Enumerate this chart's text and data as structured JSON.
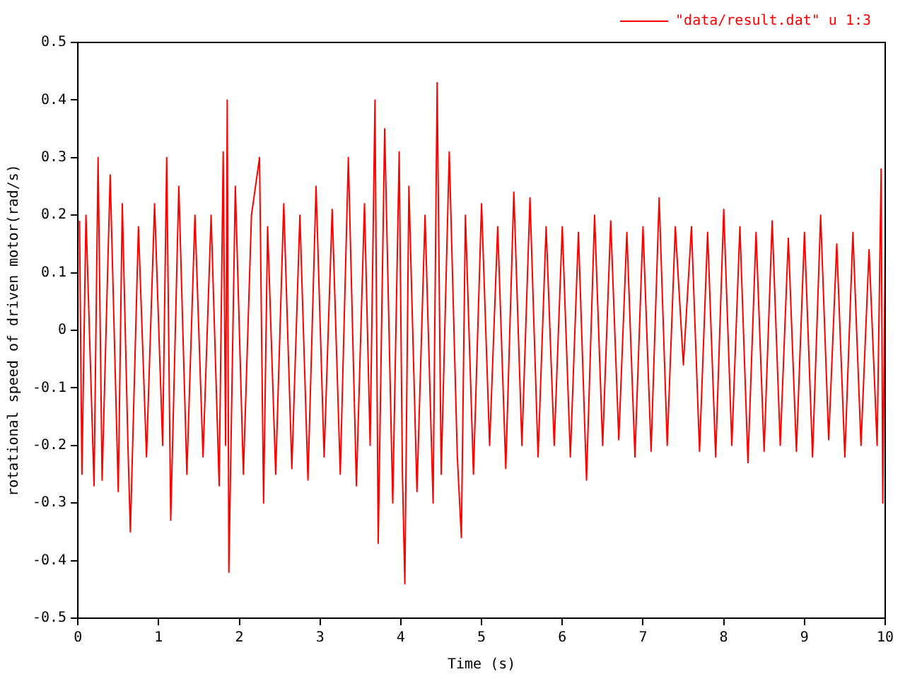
{
  "chart_data": {
    "type": "line",
    "xlabel": "Time (s)",
    "ylabel": "rotational speed of driven motor(rad/s)",
    "xlim": [
      0,
      10
    ],
    "xticks": [
      0,
      1,
      2,
      3,
      4,
      5,
      6,
      7,
      8,
      9,
      10
    ],
    "ylim": [
      -0.5,
      0.5
    ],
    "yticks": [
      -0.5,
      -0.4,
      -0.3,
      -0.2,
      -0.1,
      0,
      0.1,
      0.2,
      0.3,
      0.4,
      0.5
    ],
    "grid": false,
    "legend": "top right",
    "marker": "none",
    "line_style": "solid",
    "series": [
      {
        "name": "\"data/result.dat\" u 1:3",
        "color": "#ff0000",
        "x": [
          0.02,
          0.05,
          0.1,
          0.2,
          0.25,
          0.3,
          0.4,
          0.5,
          0.55,
          0.62,
          0.65,
          0.75,
          0.85,
          0.95,
          1.05,
          1.1,
          1.15,
          1.25,
          1.35,
          1.45,
          1.55,
          1.65,
          1.75,
          1.8,
          1.83,
          1.85,
          1.87,
          1.95,
          2.05,
          2.15,
          2.25,
          2.3,
          2.35,
          2.45,
          2.55,
          2.65,
          2.75,
          2.85,
          2.95,
          3.05,
          3.15,
          3.25,
          3.35,
          3.45,
          3.55,
          3.62,
          3.68,
          3.72,
          3.8,
          3.9,
          3.98,
          4.02,
          4.05,
          4.1,
          4.2,
          4.3,
          4.4,
          4.45,
          4.5,
          4.6,
          4.7,
          4.75,
          4.8,
          4.9,
          5.0,
          5.1,
          5.2,
          5.3,
          5.4,
          5.5,
          5.6,
          5.7,
          5.8,
          5.9,
          6.0,
          6.1,
          6.2,
          6.3,
          6.4,
          6.5,
          6.6,
          6.7,
          6.8,
          6.9,
          7.0,
          7.1,
          7.2,
          7.3,
          7.4,
          7.5,
          7.6,
          7.7,
          7.8,
          7.9,
          8.0,
          8.1,
          8.2,
          8.3,
          8.4,
          8.5,
          8.6,
          8.7,
          8.8,
          8.9,
          9.0,
          9.1,
          9.2,
          9.3,
          9.4,
          9.5,
          9.6,
          9.7,
          9.8,
          9.9,
          9.95,
          9.97,
          10
        ],
        "values": [
          0.19,
          -0.25,
          0.2,
          -0.27,
          0.3,
          -0.26,
          0.27,
          -0.28,
          0.22,
          -0.2,
          -0.35,
          0.18,
          -0.22,
          0.22,
          -0.2,
          0.3,
          -0.33,
          0.25,
          -0.25,
          0.2,
          -0.22,
          0.2,
          -0.27,
          0.31,
          -0.2,
          0.4,
          -0.42,
          0.25,
          -0.25,
          0.2,
          0.3,
          -0.3,
          0.18,
          -0.25,
          0.22,
          -0.24,
          0.2,
          -0.26,
          0.25,
          -0.22,
          0.21,
          -0.25,
          0.3,
          -0.27,
          0.22,
          -0.2,
          0.4,
          -0.37,
          0.35,
          -0.3,
          0.31,
          -0.25,
          -0.44,
          0.25,
          -0.28,
          0.2,
          -0.3,
          0.43,
          -0.25,
          0.31,
          -0.22,
          -0.36,
          0.2,
          -0.25,
          0.22,
          -0.2,
          0.18,
          -0.24,
          0.24,
          -0.2,
          0.23,
          -0.22,
          0.18,
          -0.2,
          0.18,
          -0.22,
          0.17,
          -0.26,
          0.2,
          -0.2,
          0.19,
          -0.19,
          0.17,
          -0.22,
          0.18,
          -0.21,
          0.23,
          -0.2,
          0.18,
          -0.06,
          0.18,
          -0.21,
          0.17,
          -0.22,
          0.21,
          -0.2,
          0.18,
          -0.23,
          0.17,
          -0.21,
          0.19,
          -0.2,
          0.16,
          -0.21,
          0.17,
          -0.22,
          0.2,
          -0.19,
          0.15,
          -0.22,
          0.17,
          -0.2,
          0.14,
          -0.2,
          0.28,
          -0.3,
          0.15
        ]
      }
    ]
  }
}
